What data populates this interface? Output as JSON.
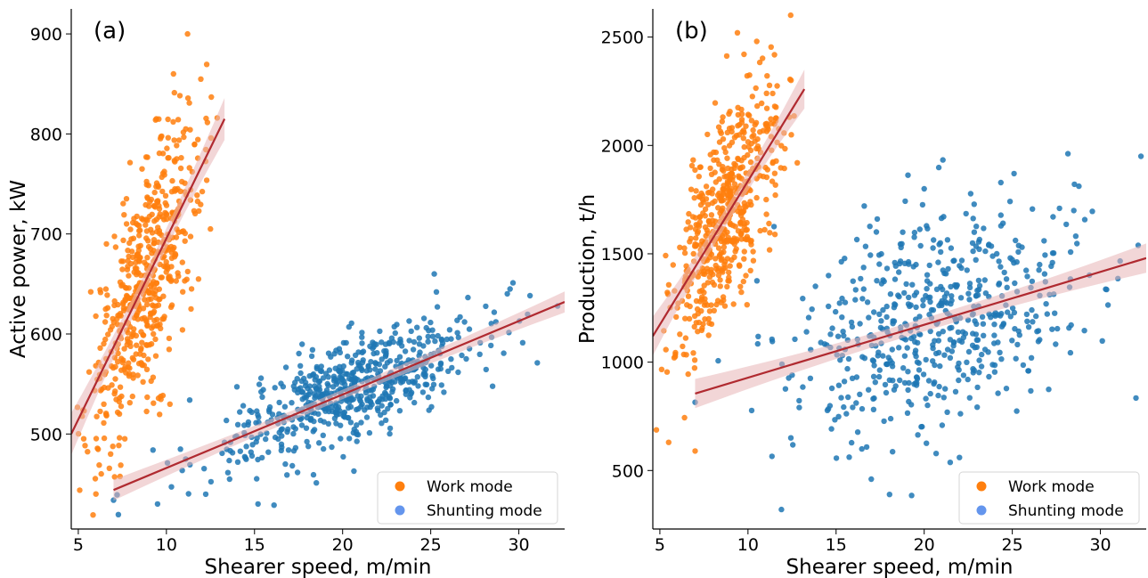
{
  "chart_data": [
    {
      "type": "scatter",
      "panel_label": "(a)",
      "xlabel": "Shearer speed, m/min",
      "ylabel": "Active power, kW",
      "xlim": [
        4.6,
        32.6
      ],
      "ylim": [
        405,
        925
      ],
      "xticks": [
        5,
        10,
        15,
        20,
        25,
        30
      ],
      "yticks": [
        500,
        600,
        700,
        800,
        900
      ],
      "grid": false,
      "legend_position": "bottom-right",
      "series": [
        {
          "name": "Work mode",
          "color": "#ff7f0e",
          "cluster": {
            "x_center": 8.8,
            "x_spread": 1.6,
            "x_min": 4.7,
            "x_max": 13.5,
            "y_noise": 55,
            "count": 560
          },
          "fit": {
            "x_range": [
              4.6,
              13.3
            ],
            "y_range": [
              500,
              815
            ],
            "band_halfwidth": 14
          },
          "sample_points": [
            [
              8.5,
              580
            ],
            [
              9.2,
              650
            ],
            [
              10.0,
              720
            ],
            [
              11.2,
              900
            ],
            [
              10.4,
              860
            ],
            [
              6.0,
              440
            ],
            [
              12.5,
              705
            ],
            [
              7.1,
              555
            ]
          ]
        },
        {
          "name": "Shunting mode",
          "color": "#1f77b4",
          "cluster": {
            "x_center": 20.5,
            "x_spread": 3.8,
            "x_min": 7.0,
            "x_max": 32.6,
            "y_noise": 24,
            "count": 620
          },
          "fit": {
            "x_range": [
              7.0,
              32.6
            ],
            "y_range": [
              444,
              632
            ],
            "band_halfwidth": 7
          },
          "sample_points": [
            [
              15.2,
              430
            ],
            [
              25.2,
              660
            ],
            [
              29.5,
              645
            ],
            [
              32.2,
              628
            ],
            [
              9.5,
              430
            ],
            [
              18.0,
              520
            ],
            [
              22.0,
              560
            ]
          ]
        }
      ],
      "legend": [
        "Work mode",
        "Shunting mode"
      ],
      "fit_line_color": "#b02a30",
      "fit_band_color": "#e8b4b6"
    },
    {
      "type": "scatter",
      "panel_label": "(b)",
      "xlabel": "Shearer speed, m/min",
      "ylabel": "Production, t/h",
      "xlim": [
        4.6,
        32.6
      ],
      "ylim": [
        230,
        2630
      ],
      "xticks": [
        5,
        10,
        15,
        20,
        25,
        30
      ],
      "yticks": [
        500,
        1000,
        1500,
        2000,
        2500
      ],
      "grid": false,
      "legend_position": "bottom-right",
      "series": [
        {
          "name": "Work mode",
          "color": "#ff7f0e",
          "cluster": {
            "x_center": 8.8,
            "x_spread": 1.5,
            "x_min": 4.8,
            "x_max": 13.6,
            "y_noise": 230,
            "count": 560
          },
          "fit": {
            "x_range": [
              4.6,
              13.2
            ],
            "y_range": [
              1120,
              2260
            ],
            "band_halfwidth": 60
          },
          "sample_points": [
            [
              9.4,
              2520
            ],
            [
              10.5,
              2480
            ],
            [
              8.5,
              1700
            ],
            [
              9.0,
              1850
            ],
            [
              5.5,
              630
            ],
            [
              7.0,
              590
            ],
            [
              12.8,
              1920
            ]
          ]
        },
        {
          "name": "Shunting mode",
          "color": "#1f77b4",
          "cluster": {
            "x_center": 20.5,
            "x_spread": 4.2,
            "x_min": 7.0,
            "x_max": 32.6,
            "y_noise": 240,
            "count": 560
          },
          "fit": {
            "x_range": [
              7.0,
              32.6
            ],
            "y_range": [
              855,
              1480
            ],
            "band_halfwidth": 45
          },
          "sample_points": [
            [
              32.3,
              1950
            ],
            [
              11.9,
              320
            ],
            [
              25.1,
              1870
            ],
            [
              17.0,
              460
            ],
            [
              20.0,
              1800
            ],
            [
              22.0,
              560
            ]
          ]
        }
      ],
      "legend": [
        "Work mode",
        "Shunting mode"
      ],
      "fit_line_color": "#b02a30",
      "fit_band_color": "#e8b4b6"
    }
  ]
}
